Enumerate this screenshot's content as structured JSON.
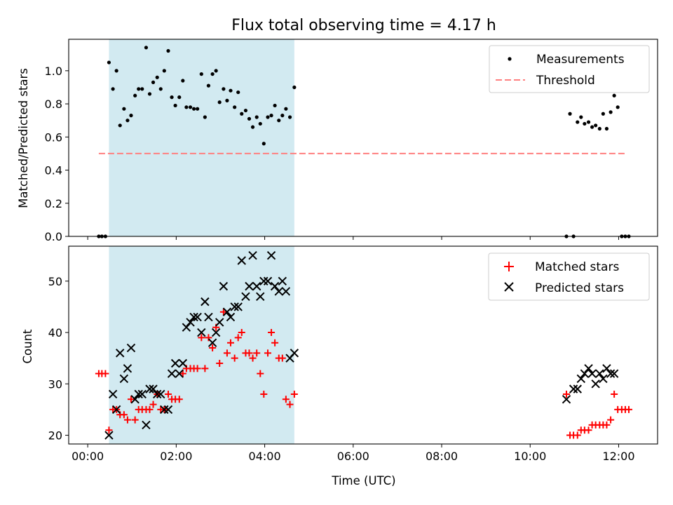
{
  "title": "Flux total observing time = 4.17 h",
  "colors": {
    "shade": "#add8e6",
    "measurement": "#000000",
    "threshold": "#ff7f7f",
    "matched": "#ff0000",
    "predicted": "#000000"
  },
  "chart_data": [
    {
      "type": "scatter",
      "xlabel": "",
      "ylabel": "Matched/Predicted stars",
      "xlim": [
        -0.43,
        12.88
      ],
      "ylim": [
        0,
        1.19
      ],
      "yticks": [
        0.0,
        0.2,
        0.4,
        0.6,
        0.8,
        1.0
      ],
      "ytick_labels": [
        "0.0",
        "0.2",
        "0.4",
        "0.6",
        "0.8",
        "1.0"
      ],
      "xticks": [
        0,
        2,
        4,
        6,
        8,
        10,
        12
      ],
      "shaded_span": [
        0.48,
        4.67
      ],
      "legend": {
        "position": "upper right",
        "entries": [
          "Measurements",
          "Threshold"
        ]
      },
      "threshold": {
        "name": "Threshold",
        "y": 0.5,
        "x_range": [
          0.25,
          12.15
        ],
        "style": "dashed"
      },
      "series": [
        {
          "name": "Measurements",
          "marker": "dot",
          "x": [
            0.25,
            0.32,
            0.4,
            0.48,
            0.57,
            0.65,
            0.73,
            0.82,
            0.9,
            0.98,
            1.07,
            1.15,
            1.23,
            1.32,
            1.4,
            1.48,
            1.57,
            1.65,
            1.73,
            1.82,
            1.9,
            1.98,
            2.07,
            2.15,
            2.23,
            2.32,
            2.4,
            2.48,
            2.57,
            2.65,
            2.73,
            2.82,
            2.9,
            2.98,
            3.07,
            3.15,
            3.23,
            3.32,
            3.4,
            3.48,
            3.57,
            3.65,
            3.73,
            3.82,
            3.9,
            3.98,
            4.07,
            4.15,
            4.23,
            4.32,
            4.4,
            4.48,
            4.57,
            4.67,
            10.82,
            10.9,
            10.98,
            11.07,
            11.15,
            11.23,
            11.32,
            11.4,
            11.48,
            11.57,
            11.65,
            11.73,
            11.82,
            11.9,
            11.98,
            12.07,
            12.15,
            12.23
          ],
          "y": [
            0.0,
            0.0,
            0.0,
            1.05,
            0.89,
            1.0,
            0.67,
            0.77,
            0.7,
            0.73,
            0.85,
            0.89,
            0.89,
            1.14,
            0.86,
            0.93,
            0.96,
            0.89,
            1.0,
            1.12,
            0.84,
            0.79,
            0.84,
            0.94,
            0.78,
            0.78,
            0.77,
            0.77,
            0.98,
            0.72,
            0.91,
            0.98,
            1.0,
            0.81,
            0.89,
            0.82,
            0.88,
            0.78,
            0.87,
            0.74,
            0.76,
            0.71,
            0.66,
            0.72,
            0.68,
            0.56,
            0.72,
            0.73,
            0.79,
            0.7,
            0.73,
            0.77,
            0.72,
            0.9,
            0.0,
            0.74,
            0.0,
            0.69,
            0.72,
            0.68,
            0.69,
            0.66,
            0.67,
            0.65,
            0.74,
            0.65,
            0.75,
            0.85,
            0.78,
            0.0,
            0.0,
            0.0
          ]
        }
      ]
    },
    {
      "type": "scatter",
      "xlabel": "Time (UTC)",
      "ylabel": "Count",
      "xlim": [
        -0.43,
        12.88
      ],
      "ylim": [
        18.3,
        56.8
      ],
      "yticks": [
        20,
        30,
        40,
        50
      ],
      "ytick_labels": [
        "20",
        "30",
        "40",
        "50"
      ],
      "xticks": [
        0,
        2,
        4,
        6,
        8,
        10,
        12
      ],
      "xtick_labels": [
        "00:00",
        "02:00",
        "04:00",
        "06:00",
        "08:00",
        "10:00",
        "12:00"
      ],
      "shaded_span": [
        0.48,
        4.67
      ],
      "legend": {
        "position": "upper right",
        "entries": [
          "Matched stars",
          "Predicted stars"
        ]
      },
      "series": [
        {
          "name": "Matched stars",
          "marker": "plus",
          "x": [
            0.25,
            0.32,
            0.4,
            0.48,
            0.57,
            0.65,
            0.73,
            0.82,
            0.9,
            0.98,
            1.07,
            1.15,
            1.23,
            1.32,
            1.4,
            1.48,
            1.57,
            1.65,
            1.73,
            1.82,
            1.9,
            1.98,
            2.07,
            2.15,
            2.23,
            2.32,
            2.4,
            2.48,
            2.57,
            2.65,
            2.73,
            2.82,
            2.9,
            2.98,
            3.07,
            3.15,
            3.23,
            3.32,
            3.4,
            3.48,
            3.57,
            3.65,
            3.73,
            3.82,
            3.9,
            3.98,
            4.07,
            4.15,
            4.23,
            4.32,
            4.4,
            4.48,
            4.57,
            4.67,
            10.82,
            10.9,
            10.98,
            11.07,
            11.15,
            11.23,
            11.32,
            11.4,
            11.48,
            11.57,
            11.65,
            11.73,
            11.82,
            11.9,
            11.98,
            12.07,
            12.15,
            12.23
          ],
          "y": [
            32,
            32,
            32,
            21,
            25,
            25,
            24,
            24,
            23,
            27,
            23,
            25,
            25,
            25,
            25,
            26,
            28,
            25,
            25,
            28,
            27,
            27,
            27,
            32,
            33,
            33,
            33,
            33,
            39,
            33,
            39,
            37,
            41,
            34,
            44,
            36,
            38,
            35,
            39,
            40,
            36,
            36,
            35,
            36,
            32,
            28,
            36,
            40,
            38,
            35,
            35,
            27,
            26,
            28,
            28,
            20,
            20,
            20,
            21,
            21,
            21,
            22,
            22,
            22,
            22,
            22,
            23,
            28,
            25,
            25,
            25,
            25
          ]
        },
        {
          "name": "Predicted stars",
          "marker": "x",
          "x": [
            0.48,
            0.57,
            0.65,
            0.73,
            0.82,
            0.9,
            0.98,
            1.07,
            1.15,
            1.23,
            1.32,
            1.4,
            1.48,
            1.57,
            1.65,
            1.73,
            1.82,
            1.9,
            1.98,
            2.07,
            2.15,
            2.23,
            2.32,
            2.4,
            2.48,
            2.57,
            2.65,
            2.73,
            2.82,
            2.9,
            2.98,
            3.07,
            3.15,
            3.23,
            3.32,
            3.4,
            3.48,
            3.57,
            3.65,
            3.73,
            3.82,
            3.9,
            3.98,
            4.07,
            4.15,
            4.23,
            4.32,
            4.4,
            4.48,
            4.57,
            4.67,
            10.82,
            10.98,
            11.07,
            11.15,
            11.23,
            11.32,
            11.4,
            11.48,
            11.57,
            11.65,
            11.73,
            11.82,
            11.9
          ],
          "y": [
            20,
            28,
            25,
            36,
            31,
            33,
            37,
            27,
            28,
            28,
            22,
            29,
            29,
            28,
            28,
            25,
            25,
            32,
            34,
            32,
            34,
            41,
            42,
            43,
            43,
            40,
            46,
            43,
            38,
            40,
            42,
            49,
            44,
            43,
            45,
            45,
            54,
            47,
            49,
            55,
            49,
            47,
            50,
            50,
            55,
            49,
            48,
            50,
            48,
            35,
            36,
            27,
            29,
            29,
            31,
            32,
            33,
            32,
            30,
            32,
            31,
            33,
            32,
            32
          ]
        }
      ]
    }
  ]
}
